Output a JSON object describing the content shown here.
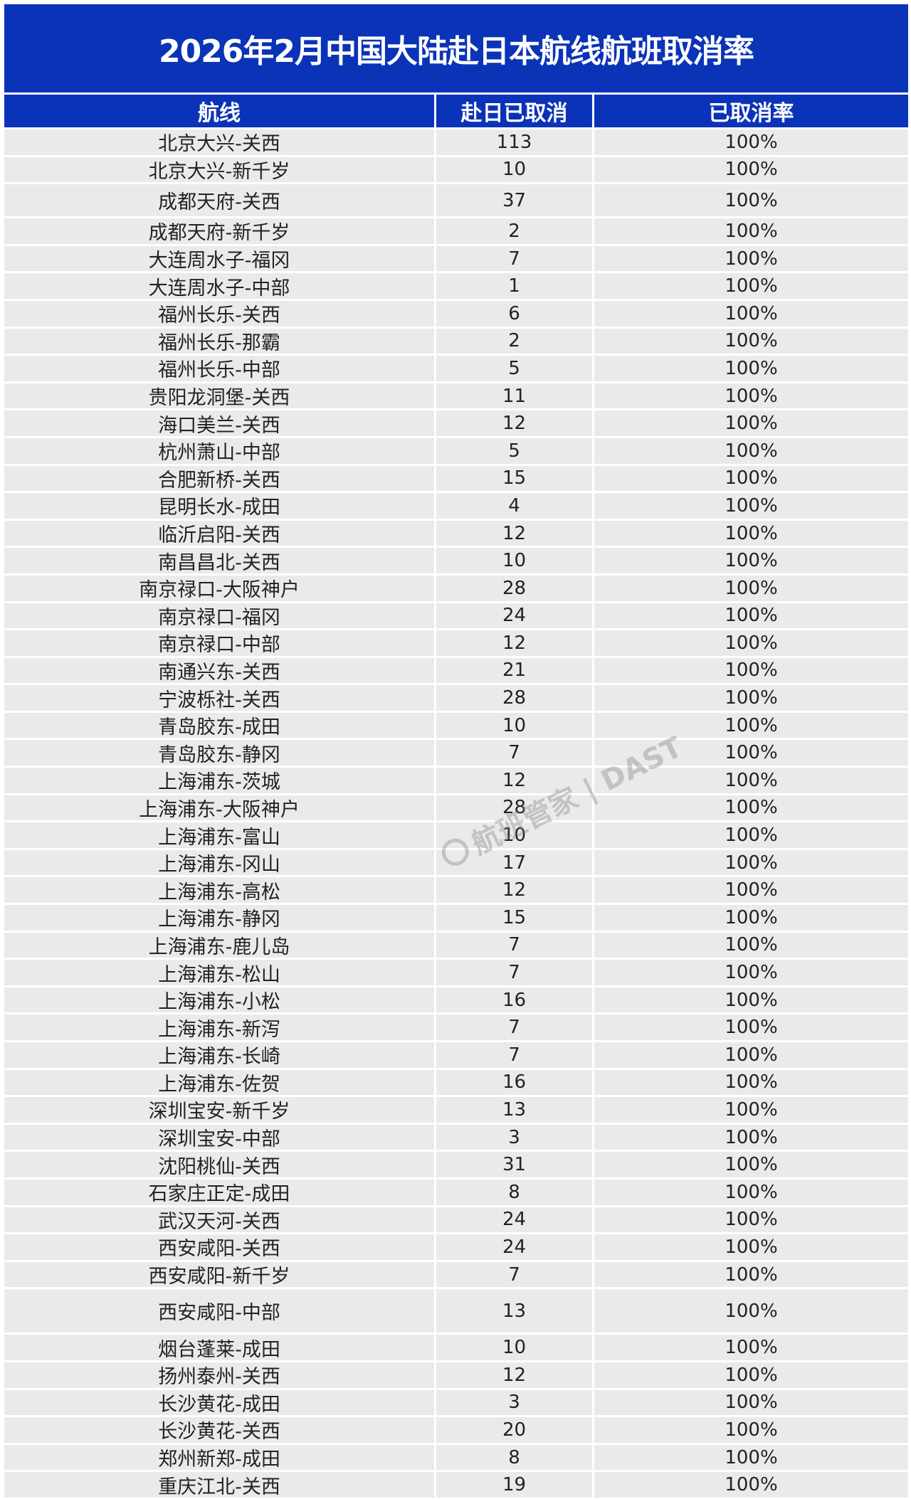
{
  "title": "2026年2月中国大陆赴日本航线航班取消率",
  "columns": [
    "航线",
    "赴日已取消",
    "已取消率"
  ],
  "watermark": "航班管家 | DAST",
  "colors": {
    "header_bg": "#0b33b8",
    "row_bg": "#e9ebeb",
    "header_text": "#ffffff"
  },
  "rows": [
    [
      "北京大兴-关西",
      "113",
      "100%"
    ],
    [
      "北京大兴-新千岁",
      "10",
      "100%"
    ],
    [
      "成都天府-关西",
      "37",
      "100%"
    ],
    [
      "成都天府-新千岁",
      "2",
      "100%"
    ],
    [
      "大连周水子-福冈",
      "7",
      "100%"
    ],
    [
      "大连周水子-中部",
      "1",
      "100%"
    ],
    [
      "福州长乐-关西",
      "6",
      "100%"
    ],
    [
      "福州长乐-那霸",
      "2",
      "100%"
    ],
    [
      "福州长乐-中部",
      "5",
      "100%"
    ],
    [
      "贵阳龙洞堡-关西",
      "11",
      "100%"
    ],
    [
      "海口美兰-关西",
      "12",
      "100%"
    ],
    [
      "杭州萧山-中部",
      "5",
      "100%"
    ],
    [
      "合肥新桥-关西",
      "15",
      "100%"
    ],
    [
      "昆明长水-成田",
      "4",
      "100%"
    ],
    [
      "临沂启阳-关西",
      "12",
      "100%"
    ],
    [
      "南昌昌北-关西",
      "10",
      "100%"
    ],
    [
      "南京禄口-大阪神户",
      "28",
      "100%"
    ],
    [
      "南京禄口-福冈",
      "24",
      "100%"
    ],
    [
      "南京禄口-中部",
      "12",
      "100%"
    ],
    [
      "南通兴东-关西",
      "21",
      "100%"
    ],
    [
      "宁波栎社-关西",
      "28",
      "100%"
    ],
    [
      "青岛胶东-成田",
      "10",
      "100%"
    ],
    [
      "青岛胶东-静冈",
      "7",
      "100%"
    ],
    [
      "上海浦东-茨城",
      "12",
      "100%"
    ],
    [
      "上海浦东-大阪神户",
      "28",
      "100%"
    ],
    [
      "上海浦东-富山",
      "10",
      "100%"
    ],
    [
      "上海浦东-冈山",
      "17",
      "100%"
    ],
    [
      "上海浦东-高松",
      "12",
      "100%"
    ],
    [
      "上海浦东-静冈",
      "15",
      "100%"
    ],
    [
      "上海浦东-鹿儿岛",
      "7",
      "100%"
    ],
    [
      "上海浦东-松山",
      "7",
      "100%"
    ],
    [
      "上海浦东-小松",
      "16",
      "100%"
    ],
    [
      "上海浦东-新泻",
      "7",
      "100%"
    ],
    [
      "上海浦东-长崎",
      "7",
      "100%"
    ],
    [
      "上海浦东-佐贺",
      "16",
      "100%"
    ],
    [
      "深圳宝安-新千岁",
      "13",
      "100%"
    ],
    [
      "深圳宝安-中部",
      "3",
      "100%"
    ],
    [
      "沈阳桃仙-关西",
      "31",
      "100%"
    ],
    [
      "石家庄正定-成田",
      "8",
      "100%"
    ],
    [
      "武汉天河-关西",
      "24",
      "100%"
    ],
    [
      "西安咸阳-关西",
      "24",
      "100%"
    ],
    [
      "西安咸阳-新千岁",
      "7",
      "100%"
    ],
    [
      "西安咸阳-中部",
      "13",
      "100%"
    ],
    [
      "烟台蓬莱-成田",
      "10",
      "100%"
    ],
    [
      "扬州泰州-关西",
      "12",
      "100%"
    ],
    [
      "长沙黄花-成田",
      "3",
      "100%"
    ],
    [
      "长沙黄花-关西",
      "20",
      "100%"
    ],
    [
      "郑州新郑-成田",
      "8",
      "100%"
    ],
    [
      "重庆江北-关西",
      "19",
      "100%"
    ]
  ]
}
